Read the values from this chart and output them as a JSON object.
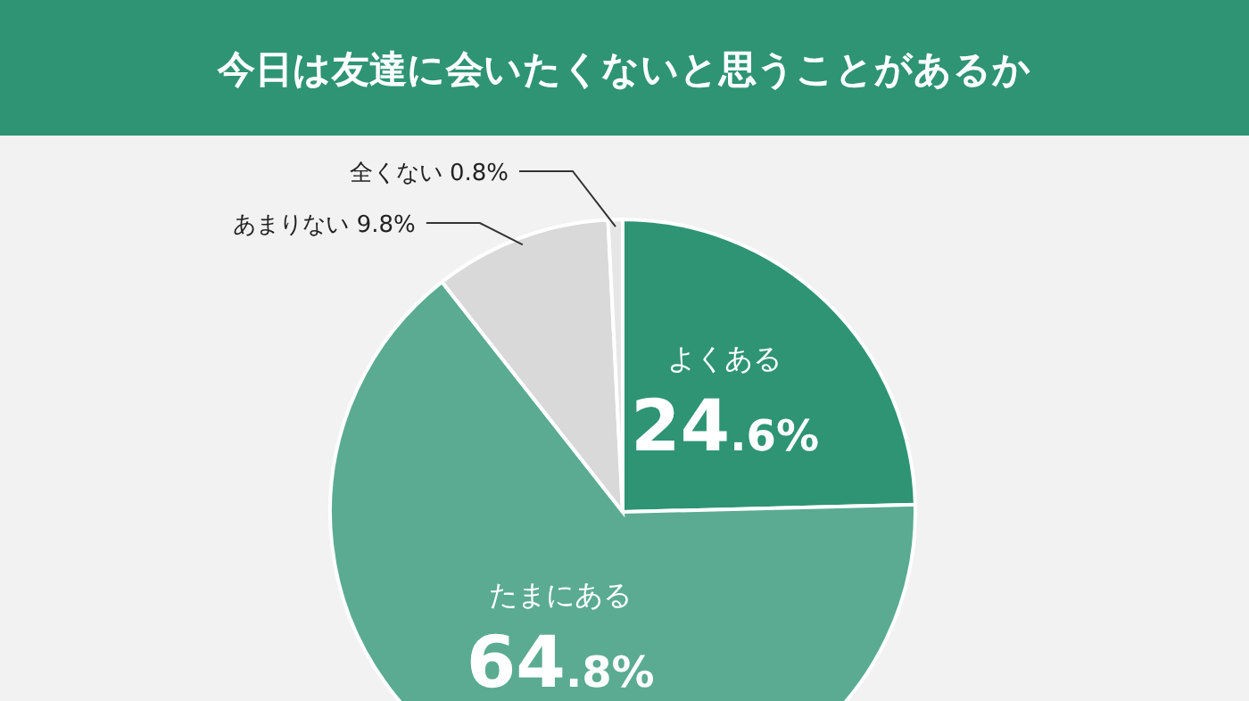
{
  "chart_data": {
    "type": "pie",
    "title": "今日は友達に会いたくないと思うことがあるか",
    "categories": [
      "よくある",
      "たまにある",
      "あまりない",
      "全くない"
    ],
    "values": [
      24.6,
      64.8,
      9.8,
      0.8
    ],
    "colors": [
      "#2e9474",
      "#5aab91",
      "#d9d9d9",
      "#e6e6e6"
    ],
    "value_labels": [
      "24.6%",
      "64.8%",
      "9.8%",
      "0.8%"
    ]
  }
}
